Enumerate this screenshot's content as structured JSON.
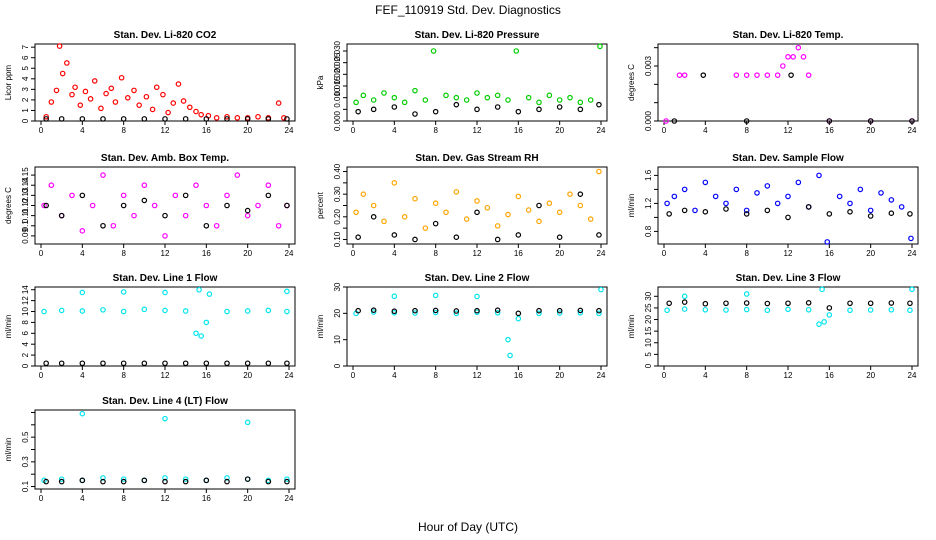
{
  "figure": {
    "title": "FEF_110919  Std. Dev. Diagnostics",
    "xlabel": "Hour of Day (UTC)"
  },
  "colors": {
    "black": "#000000",
    "red": "#ff0000",
    "green": "#00cc00",
    "magenta": "#ff00ff",
    "orange": "#ffa500",
    "blue": "#0000ff",
    "cyan": "#00e5ee"
  },
  "chart_data": [
    {
      "type": "scatter",
      "title": "Stan. Dev. Li-820 CO2",
      "ylabel": "Licor ppm",
      "xlim": [
        0,
        24
      ],
      "ylim": [
        0,
        7.3
      ],
      "xticks": [
        0,
        4,
        8,
        12,
        16,
        20,
        24
      ],
      "yticks": [
        0,
        1,
        2,
        3,
        4,
        5,
        6,
        7
      ],
      "series": [
        {
          "color": "red",
          "x": [
            0.5,
            1,
            1.5,
            1.8,
            2.1,
            2.5,
            3,
            3.3,
            3.8,
            4.3,
            4.8,
            5.2,
            5.8,
            6.3,
            6.8,
            7.2,
            7.8,
            8.4,
            9,
            9.5,
            10.2,
            10.8,
            11.2,
            11.8,
            12.3,
            12.8,
            13.3,
            13.8,
            14.4,
            15,
            15.5,
            16.2,
            17,
            18,
            19,
            20,
            21,
            22,
            23,
            23.5
          ],
          "y": [
            0.4,
            1.8,
            2.9,
            7.1,
            4.5,
            5.5,
            2.5,
            3.2,
            1.5,
            2.8,
            2.1,
            3.8,
            1.2,
            2.6,
            3.1,
            1.8,
            4.1,
            2.2,
            2.9,
            1.5,
            2.3,
            1.1,
            3.2,
            2.5,
            0.8,
            1.7,
            3.5,
            1.9,
            1.3,
            0.9,
            0.6,
            0.5,
            0.3,
            0.4,
            0.3,
            0.3,
            0.4,
            0.3,
            1.7,
            0.3
          ]
        },
        {
          "color": "black",
          "x": [
            0.5,
            2,
            4,
            6,
            8,
            10,
            12,
            14,
            16,
            18,
            20,
            22,
            23.8
          ],
          "y": [
            0.2,
            0.2,
            0.2,
            0.2,
            0.2,
            0.2,
            0.2,
            0.2,
            0.2,
            0.2,
            0.2,
            0.2,
            0.2
          ]
        }
      ]
    },
    {
      "type": "scatter",
      "title": "Stan. Dev. Li-820 Pressure",
      "ylabel": "kPa",
      "xlim": [
        0,
        24
      ],
      "ylim": [
        0,
        0.033
      ],
      "xticks": [
        0,
        4,
        8,
        12,
        16,
        20,
        24
      ],
      "yticks": [
        0.0,
        0.005,
        0.01,
        0.015,
        0.02,
        0.025,
        0.03
      ],
      "ytick_labels": [
        "0.000",
        "",
        "0.010",
        "0.015",
        "0.020",
        "0.025",
        "0.030"
      ],
      "series": [
        {
          "color": "green",
          "x": [
            0.3,
            1,
            2,
            3,
            4,
            5,
            6,
            7,
            7.8,
            9,
            10,
            11,
            12,
            13,
            14,
            15,
            15.8,
            17,
            18,
            19,
            20,
            21,
            22,
            23,
            23.9
          ],
          "y": [
            0.008,
            0.011,
            0.009,
            0.012,
            0.01,
            0.008,
            0.013,
            0.009,
            0.03,
            0.011,
            0.01,
            0.009,
            0.012,
            0.01,
            0.011,
            0.009,
            0.03,
            0.01,
            0.008,
            0.011,
            0.009,
            0.01,
            0.008,
            0.009,
            0.032
          ]
        },
        {
          "color": "black",
          "x": [
            0.5,
            2,
            4,
            6,
            8,
            10,
            12,
            14,
            16,
            18,
            20,
            22,
            23.8
          ],
          "y": [
            0.004,
            0.005,
            0.006,
            0.003,
            0.004,
            0.007,
            0.005,
            0.006,
            0.004,
            0.005,
            0.006,
            0.005,
            0.007
          ]
        }
      ]
    },
    {
      "type": "scatter",
      "title": "Stan. Dev. Li-820 Temp.",
      "ylabel": "degrees C",
      "xlim": [
        0,
        24
      ],
      "ylim": [
        0,
        0.0042
      ],
      "xticks": [
        0,
        4,
        8,
        12,
        16,
        20,
        24
      ],
      "yticks": [
        0.0,
        0.001,
        0.002,
        0.003,
        0.004
      ],
      "ytick_labels": [
        "0.000",
        "",
        "",
        "0.003",
        ""
      ],
      "series": [
        {
          "color": "magenta",
          "x": [
            0.2,
            1.5,
            2,
            7,
            8,
            9,
            10,
            11,
            11.5,
            12,
            12.5,
            13,
            13.5,
            14,
            16,
            20,
            24
          ],
          "y": [
            0,
            0.0025,
            0.0025,
            0.0025,
            0.0025,
            0.0025,
            0.0025,
            0.0025,
            0.003,
            0.0035,
            0.0035,
            0.004,
            0.0035,
            0.0025,
            0,
            0,
            0
          ]
        },
        {
          "color": "black",
          "x": [
            1,
            3.8,
            8,
            12.3,
            16,
            20,
            24
          ],
          "y": [
            0,
            0.0025,
            0,
            0.0025,
            0,
            0,
            0
          ]
        }
      ]
    },
    {
      "type": "scatter",
      "title": "Stan. Dev. Amb. Box Temp.",
      "ylabel": "degrees C",
      "xlim": [
        0,
        24
      ],
      "ylim": [
        0.082,
        0.158
      ],
      "xticks": [
        0,
        4,
        8,
        12,
        16,
        20,
        24
      ],
      "yticks": [
        0.09,
        0.1,
        0.11,
        0.12,
        0.13,
        0.14,
        0.15
      ],
      "series": [
        {
          "color": "magenta",
          "x": [
            0.3,
            1,
            2,
            3,
            4,
            5,
            6,
            7,
            8,
            9,
            10,
            11,
            12,
            13,
            14,
            15,
            16,
            17,
            18,
            19,
            20,
            21,
            22,
            23,
            23.8
          ],
          "y": [
            0.12,
            0.14,
            0.11,
            0.13,
            0.095,
            0.12,
            0.15,
            0.1,
            0.13,
            0.11,
            0.14,
            0.12,
            0.09,
            0.13,
            0.11,
            0.14,
            0.12,
            0.1,
            0.13,
            0.15,
            0.11,
            0.12,
            0.14,
            0.1,
            0.12
          ]
        },
        {
          "color": "black",
          "x": [
            0.5,
            2,
            4,
            6,
            8,
            10,
            12,
            14,
            16,
            18,
            20,
            22,
            23.8
          ],
          "y": [
            0.12,
            0.11,
            0.13,
            0.1,
            0.12,
            0.125,
            0.11,
            0.13,
            0.1,
            0.12,
            0.115,
            0.13,
            0.12
          ]
        }
      ]
    },
    {
      "type": "scatter",
      "title": "Stan. Dev. Gas Stream RH",
      "ylabel": "percent",
      "xlim": [
        0,
        24
      ],
      "ylim": [
        0.08,
        0.42
      ],
      "xticks": [
        0,
        4,
        8,
        12,
        16,
        20,
        24
      ],
      "yticks": [
        0.1,
        0.15,
        0.2,
        0.25,
        0.3,
        0.35,
        0.4
      ],
      "ytick_labels": [
        "0.10",
        "",
        "0.20",
        "",
        "0.30",
        "",
        "0.40"
      ],
      "series": [
        {
          "color": "orange",
          "x": [
            0.3,
            1,
            2,
            3,
            4,
            5,
            6,
            7,
            8,
            9,
            10,
            11,
            12,
            13,
            14,
            15,
            16,
            17,
            18,
            19,
            20,
            21,
            22,
            23,
            23.8
          ],
          "y": [
            0.22,
            0.3,
            0.25,
            0.18,
            0.35,
            0.2,
            0.28,
            0.15,
            0.26,
            0.22,
            0.31,
            0.19,
            0.27,
            0.24,
            0.16,
            0.21,
            0.29,
            0.23,
            0.18,
            0.26,
            0.22,
            0.3,
            0.25,
            0.19,
            0.4
          ]
        },
        {
          "color": "black",
          "x": [
            0.5,
            2,
            4,
            6,
            8,
            10,
            12,
            14,
            16,
            18,
            20,
            22,
            23.8
          ],
          "y": [
            0.11,
            0.2,
            0.12,
            0.1,
            0.17,
            0.11,
            0.22,
            0.1,
            0.12,
            0.25,
            0.11,
            0.3,
            0.12
          ]
        }
      ]
    },
    {
      "type": "scatter",
      "title": "Stan. Dev. Sample Flow",
      "ylabel": "ml/min",
      "xlim": [
        0,
        24
      ],
      "ylim": [
        0.62,
        1.72
      ],
      "xticks": [
        0,
        4,
        8,
        12,
        16,
        20,
        24
      ],
      "yticks": [
        0.8,
        1.0,
        1.2,
        1.4,
        1.6
      ],
      "ytick_labels": [
        "0.8",
        "",
        "1.2",
        "",
        "1.6"
      ],
      "series": [
        {
          "color": "blue",
          "x": [
            0.3,
            1,
            2,
            3,
            4,
            5,
            6,
            7,
            8,
            9,
            10,
            11,
            12,
            13,
            14,
            15,
            15.8,
            17,
            18,
            19,
            20,
            21,
            22,
            23,
            23.9
          ],
          "y": [
            1.2,
            1.3,
            1.4,
            1.1,
            1.5,
            1.3,
            1.2,
            1.4,
            1.1,
            1.35,
            1.45,
            1.2,
            1.3,
            1.5,
            1.15,
            1.6,
            0.65,
            1.3,
            1.2,
            1.4,
            1.1,
            1.35,
            1.25,
            1.15,
            0.7
          ]
        },
        {
          "color": "black",
          "x": [
            0.5,
            2,
            4,
            6,
            8,
            10,
            12,
            14,
            16,
            18,
            20,
            22,
            23.8
          ],
          "y": [
            1.05,
            1.1,
            1.08,
            1.12,
            1.05,
            1.1,
            1.0,
            1.15,
            1.05,
            1.08,
            1.02,
            1.06,
            1.05
          ]
        }
      ]
    },
    {
      "type": "scatter",
      "title": "Stan. Dev. Line 1 Flow",
      "ylabel": "ml/min",
      "xlim": [
        0,
        24
      ],
      "ylim": [
        0,
        14.5
      ],
      "xticks": [
        0,
        4,
        8,
        12,
        16,
        20,
        24
      ],
      "yticks": [
        0,
        2,
        4,
        6,
        8,
        10,
        12,
        14
      ],
      "series": [
        {
          "color": "cyan",
          "x": [
            0.3,
            2,
            4,
            6,
            8,
            10,
            12,
            14,
            15,
            15.5,
            16,
            18,
            20,
            22,
            23.8,
            4,
            8,
            12,
            15.3,
            16.3,
            23.8
          ],
          "y": [
            10,
            10.2,
            10.1,
            10.3,
            10,
            10.4,
            10.2,
            10.1,
            6,
            5.5,
            8,
            10,
            10.1,
            10.2,
            10,
            13.5,
            13.6,
            13.5,
            14,
            13.2,
            13.7
          ]
        },
        {
          "color": "black",
          "x": [
            0.5,
            2,
            4,
            6,
            8,
            10,
            12,
            14,
            16,
            18,
            20,
            22,
            23.8
          ],
          "y": [
            0.5,
            0.5,
            0.5,
            0.5,
            0.5,
            0.5,
            0.5,
            0.5,
            0.5,
            0.5,
            0.5,
            0.5,
            0.5
          ]
        }
      ]
    },
    {
      "type": "scatter",
      "title": "Stan. Dev. Line 2 Flow",
      "ylabel": "ml/min",
      "xlim": [
        0,
        24
      ],
      "ylim": [
        0,
        30
      ],
      "xticks": [
        0,
        4,
        8,
        12,
        16,
        20,
        24
      ],
      "yticks": [
        0,
        10,
        20,
        30
      ],
      "series": [
        {
          "color": "cyan",
          "x": [
            0.3,
            2,
            4,
            6,
            8,
            10,
            12,
            14,
            15,
            15.2,
            16,
            18,
            20,
            22,
            23.8,
            4,
            8,
            12,
            24
          ],
          "y": [
            20,
            20.5,
            20.2,
            20.1,
            20.3,
            20,
            20.4,
            20.2,
            10,
            4,
            18,
            20,
            20.1,
            20.2,
            20,
            26.5,
            26.8,
            26.4,
            29
          ]
        },
        {
          "color": "black",
          "x": [
            0.5,
            2,
            4,
            6,
            8,
            10,
            12,
            14,
            16,
            18,
            20,
            22,
            23.8
          ],
          "y": [
            21,
            21.2,
            20.8,
            21,
            21.1,
            20.9,
            21,
            21.2,
            20,
            21,
            21,
            21.1,
            21
          ]
        }
      ]
    },
    {
      "type": "scatter",
      "title": "Stan. Dev. Line 3 Flow",
      "ylabel": "ml/min",
      "xlim": [
        0,
        24
      ],
      "ylim": [
        0,
        34
      ],
      "xticks": [
        0,
        4,
        8,
        12,
        16,
        20,
        24
      ],
      "yticks": [
        0,
        5,
        10,
        15,
        20,
        25,
        30
      ],
      "series": [
        {
          "color": "cyan",
          "x": [
            0.3,
            2,
            4,
            6,
            8,
            10,
            12,
            14,
            15,
            15.5,
            16,
            18,
            20,
            22,
            23.8,
            2,
            8,
            15.3,
            24
          ],
          "y": [
            24,
            24.5,
            24.2,
            24.1,
            24.3,
            24,
            24.4,
            24.2,
            18,
            19,
            22,
            24,
            24.1,
            24.2,
            24,
            30,
            31,
            33,
            33
          ]
        },
        {
          "color": "black",
          "x": [
            0.5,
            2,
            4,
            6,
            8,
            10,
            12,
            14,
            16,
            18,
            20,
            22,
            23.8
          ],
          "y": [
            27,
            27.5,
            26.8,
            27,
            27.1,
            26.9,
            27,
            27.2,
            25,
            27,
            27,
            27.1,
            27
          ]
        }
      ]
    },
    {
      "type": "scatter",
      "title": "Stan. Dev. Line 4 (LT) Flow",
      "ylabel": "ml/min",
      "xlim": [
        0,
        24
      ],
      "ylim": [
        0.08,
        0.72
      ],
      "xticks": [
        0,
        4,
        8,
        12,
        16,
        20,
        24
      ],
      "yticks": [
        0.1,
        0.2,
        0.3,
        0.4,
        0.5,
        0.6,
        0.7
      ],
      "ytick_labels": [
        "0.1",
        "",
        "0.3",
        "",
        "0.5",
        "",
        ""
      ],
      "series": [
        {
          "color": "cyan",
          "x": [
            0.3,
            2,
            4,
            6,
            8,
            10,
            12,
            14,
            16,
            18,
            20,
            22,
            23.8,
            4,
            12,
            20
          ],
          "y": [
            0.15,
            0.16,
            0.15,
            0.17,
            0.16,
            0.15,
            0.17,
            0.16,
            0.15,
            0.17,
            0.16,
            0.15,
            0.16,
            0.69,
            0.65,
            0.62
          ]
        },
        {
          "color": "black",
          "x": [
            0.5,
            2,
            4,
            6,
            8,
            10,
            12,
            14,
            16,
            18,
            20,
            22,
            23.8
          ],
          "y": [
            0.14,
            0.14,
            0.15,
            0.14,
            0.14,
            0.15,
            0.14,
            0.14,
            0.15,
            0.14,
            0.16,
            0.14,
            0.14
          ]
        }
      ]
    }
  ]
}
